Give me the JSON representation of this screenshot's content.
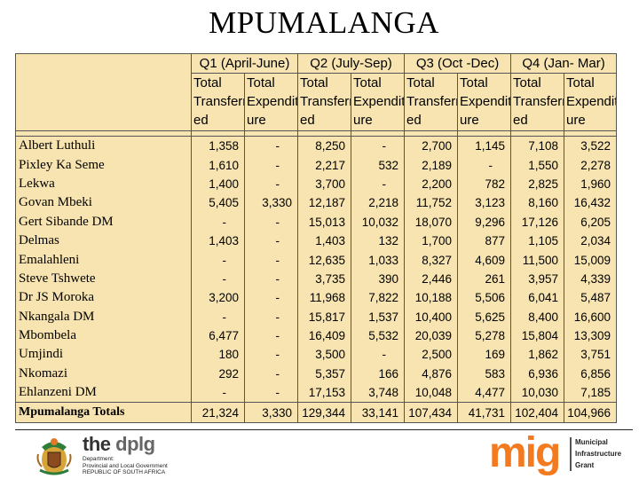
{
  "title": "MPUMALANGA",
  "table": {
    "quarters": [
      "Q1 (April-June)",
      "Q2 (July-Sep)",
      "Q3 (Oct -Dec)",
      "Q4 (Jan- Mar)"
    ],
    "sub_headers": [
      "Total Transferr ed",
      "Total Expendit ure",
      "Total Transferr ed",
      "Total Expendit ure",
      "Total Transferr ed",
      "Total Expendit ure",
      "Total Transferr ed",
      "Total Expendit ure"
    ],
    "rows": [
      {
        "name": "Albert Luthuli",
        "values": [
          "1,358",
          "-",
          "8,250",
          "-",
          "2,700",
          "1,145",
          "7,108",
          "3,522"
        ]
      },
      {
        "name": "Pixley Ka Seme",
        "values": [
          "1,610",
          "-",
          "2,217",
          "532",
          "2,189",
          "-",
          "1,550",
          "2,278"
        ]
      },
      {
        "name": "Lekwa",
        "values": [
          "1,400",
          "-",
          "3,700",
          "-",
          "2,200",
          "782",
          "2,825",
          "1,960"
        ]
      },
      {
        "name": "Govan Mbeki",
        "values": [
          "5,405",
          "3,330",
          "12,187",
          "2,218",
          "11,752",
          "3,123",
          "8,160",
          "16,432"
        ]
      },
      {
        "name": "Gert Sibande DM",
        "values": [
          "-",
          "-",
          "15,013",
          "10,032",
          "18,070",
          "9,296",
          "17,126",
          "6,205"
        ]
      },
      {
        "name": "Delmas",
        "values": [
          "1,403",
          "-",
          "1,403",
          "132",
          "1,700",
          "877",
          "1,105",
          "2,034"
        ]
      },
      {
        "name": "Emalahleni",
        "values": [
          "-",
          "-",
          "12,635",
          "1,033",
          "8,327",
          "4,609",
          "11,500",
          "15,009"
        ]
      },
      {
        "name": "Steve Tshwete",
        "values": [
          "-",
          "-",
          "3,735",
          "390",
          "2,446",
          "261",
          "3,957",
          "4,339"
        ]
      },
      {
        "name": "Dr JS Moroka",
        "values": [
          "3,200",
          "-",
          "11,968",
          "7,822",
          "10,188",
          "5,506",
          "6,041",
          "5,487"
        ]
      },
      {
        "name": "Nkangala DM",
        "values": [
          "-",
          "-",
          "15,817",
          "1,537",
          "10,400",
          "5,625",
          "8,400",
          "16,600"
        ]
      },
      {
        "name": "Mbombela",
        "values": [
          "6,477",
          "-",
          "16,409",
          "5,532",
          "20,039",
          "5,278",
          "15,804",
          "13,309"
        ]
      },
      {
        "name": "Umjindi",
        "values": [
          "180",
          "-",
          "3,500",
          "-",
          "2,500",
          "169",
          "1,862",
          "3,751"
        ]
      },
      {
        "name": "Nkomazi",
        "values": [
          "292",
          "-",
          "5,357",
          "166",
          "4,876",
          "583",
          "6,936",
          "6,856"
        ]
      },
      {
        "name": "Ehlanzeni DM",
        "values": [
          "-",
          "-",
          "17,153",
          "3,748",
          "10,048",
          "4,477",
          "10,030",
          "7,185"
        ]
      }
    ],
    "total": {
      "name": "Mpumalanga Totals",
      "values": [
        "21,324",
        "3,330",
        "129,344",
        "33,141",
        "107,434",
        "41,731",
        "102,404",
        "104,966"
      ]
    }
  },
  "footer": {
    "dplg": {
      "the": "the",
      "word": "dplg",
      "line1": "Department:",
      "line2": "Provincial and Local Government",
      "line3": "REPUBLIC OF SOUTH AFRICA"
    },
    "mig": {
      "word": "mig",
      "line1": "Municipal",
      "line2": "Infrastructure",
      "line3": "Grant",
      "color": "#f47a20"
    }
  }
}
